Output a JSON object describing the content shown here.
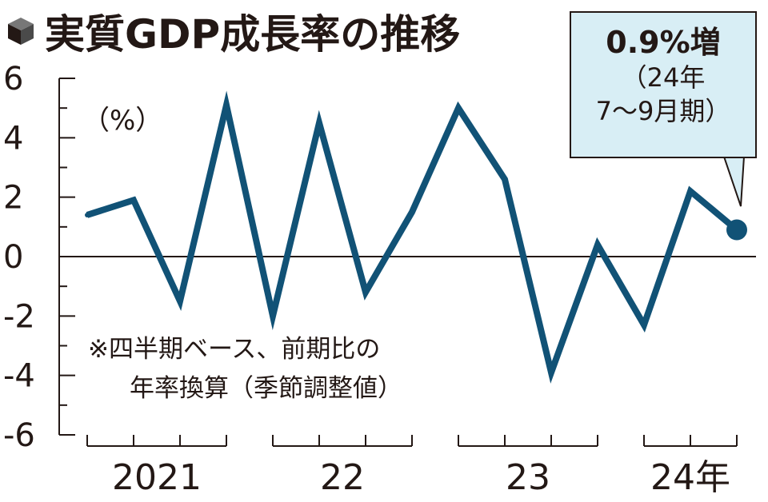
{
  "title": "実質GDP成長率の推移",
  "title_icon": "cube-icon",
  "colors": {
    "line": "#115276",
    "callout_bg": "#d8eef5",
    "text": "#231815"
  },
  "callout": {
    "main": "0.9%増",
    "line1": "（24年",
    "line2": "7〜9月期）"
  },
  "note": {
    "line1": "※四半期ベース、前期比の",
    "line2": "年率換算（季節調整値）"
  },
  "chart_data": {
    "type": "line",
    "ylabel": "（%）",
    "ylim": [
      -6,
      6
    ],
    "yticks": [
      6,
      4,
      2,
      0,
      -2,
      -4,
      -6
    ],
    "ytick_labels": [
      "6",
      "4",
      "2",
      "0",
      "-2",
      "-4",
      "-6"
    ],
    "x": [
      "2021 Q1",
      "2021 Q2",
      "2021 Q3",
      "2021 Q4",
      "2022 Q1",
      "2022 Q2",
      "2022 Q3",
      "2022 Q4",
      "2023 Q1",
      "2023 Q2",
      "2023 Q3",
      "2023 Q4",
      "2024 Q1",
      "2024 Q2",
      "2024 Q3"
    ],
    "year_labels": [
      "2021",
      "22",
      "23",
      "24年"
    ],
    "series": [
      {
        "values": [
          1.4,
          1.9,
          -1.5,
          5.1,
          -2.0,
          4.5,
          -1.2,
          1.5,
          5.0,
          2.6,
          -3.9,
          0.4,
          -2.3,
          2.2,
          0.9
        ]
      }
    ],
    "highlight_last": true,
    "grid": false
  }
}
